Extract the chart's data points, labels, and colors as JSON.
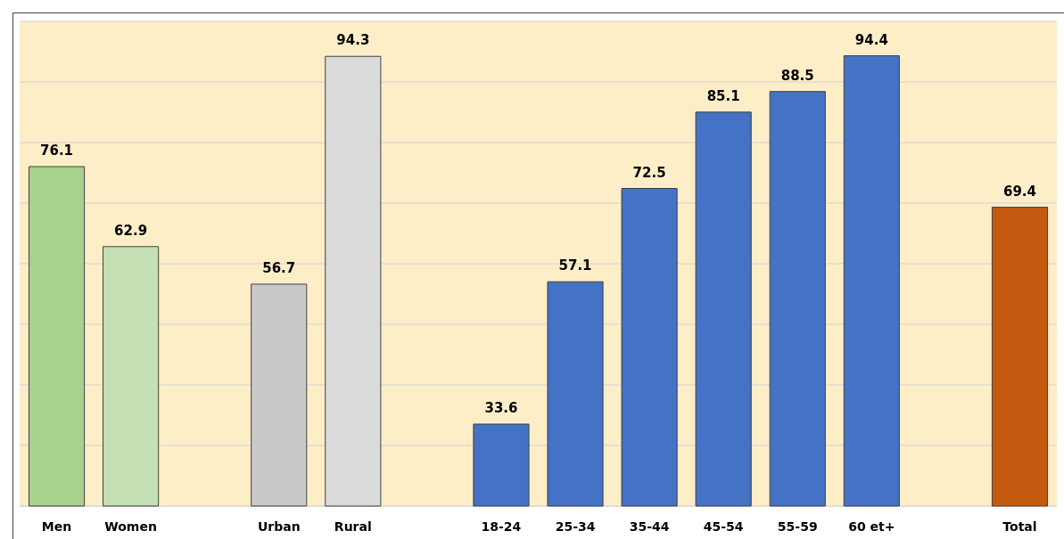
{
  "chart_data": {
    "type": "bar",
    "categories": [
      "Men",
      "Women",
      null,
      "Urban",
      "Rural",
      null,
      "18-24",
      "25-34",
      "35-44",
      "45-54",
      "55-59",
      "60 et+",
      null,
      "Total"
    ],
    "values": [
      76.1,
      62.9,
      null,
      56.7,
      94.3,
      null,
      33.6,
      57.1,
      72.5,
      85.1,
      88.5,
      94.4,
      null,
      69.4
    ],
    "colors": [
      "#a9d18e",
      "#c5e0b4",
      "#4472c4",
      "#c9c9c9",
      "#dbdbdb",
      "#4472c4",
      "#4472c4",
      "#4472c4",
      "#4472c4",
      "#4472c4",
      "#4472c4",
      "#4472c4",
      "#4472c4",
      "#c55a11"
    ],
    "ylim": [
      20,
      100
    ],
    "yticks": [
      {
        "value": 20,
        "label": null
      },
      {
        "value": 30,
        "label": null
      },
      {
        "value": 40,
        "label": null
      },
      {
        "value": 50,
        "label": null
      },
      {
        "value": 60,
        "label": null
      },
      {
        "value": 70,
        "label": null
      },
      {
        "value": 80,
        "label": null
      },
      {
        "value": 90,
        "label": null
      },
      {
        "value": 100,
        "label": null
      }
    ],
    "tick_labels": "x",
    "grid": "y",
    "data_labels": true
  }
}
